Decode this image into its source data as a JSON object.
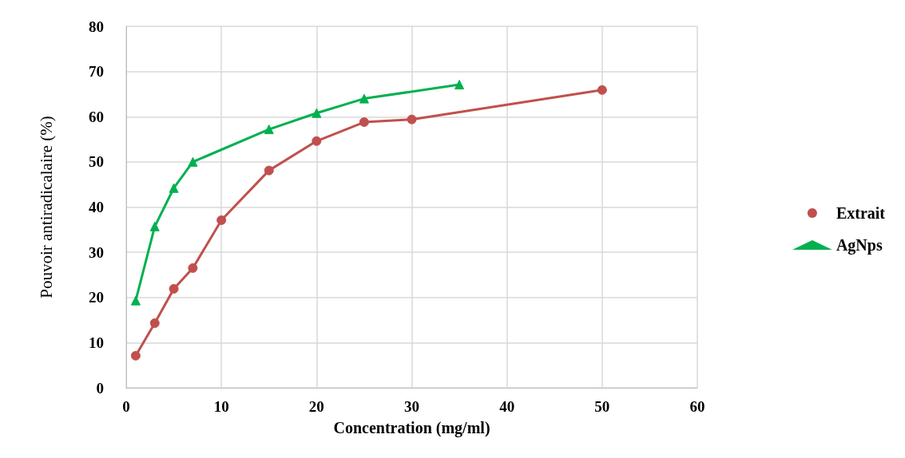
{
  "chart_data": {
    "type": "line",
    "xlabel": "Concentration (mg/ml)",
    "ylabel": "Pouvoir antiradicalaire (%)",
    "xlim": [
      0,
      60
    ],
    "xticks": [
      0,
      10,
      20,
      30,
      40,
      50,
      60
    ],
    "ylim": [
      0,
      80
    ],
    "yticks": [
      0,
      10,
      20,
      30,
      40,
      50,
      60,
      70,
      80
    ],
    "grid": true,
    "legend": "right",
    "line_style": "solid",
    "series": [
      {
        "name": "Extrait",
        "color": "#c0504d",
        "marker": "circle",
        "x": [
          1,
          3,
          5,
          7,
          10,
          15,
          20,
          25,
          30,
          50
        ],
        "values": [
          7.1,
          14.3,
          21.9,
          26.5,
          37.1,
          48.1,
          54.6,
          58.8,
          59.4,
          65.9
        ]
      },
      {
        "name": "AgNps",
        "color": "#00b050",
        "marker": "triangle",
        "x": [
          1,
          3,
          5,
          7,
          15,
          20,
          25,
          35
        ],
        "values": [
          19.3,
          35.7,
          44.2,
          50,
          57.2,
          60.8,
          64,
          67.1
        ]
      }
    ]
  }
}
